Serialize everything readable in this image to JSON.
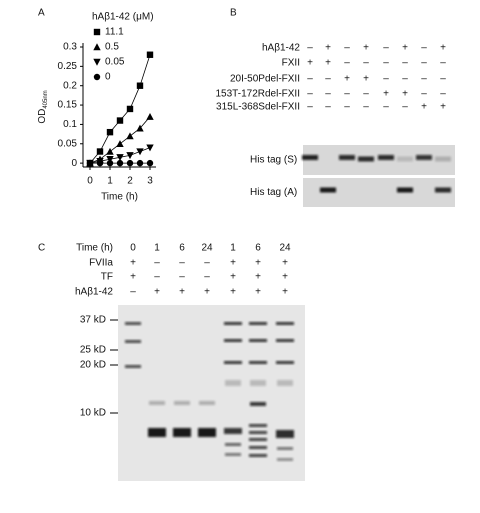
{
  "chart_data": {
    "type": "line",
    "panel_label": "A",
    "legend_title": "hAβ1-42 (μM)",
    "x_label": "Time (h)",
    "y_label": "OD",
    "y_label_sub": "405nm",
    "x": [
      0,
      0.5,
      1,
      1.5,
      2,
      2.5,
      3
    ],
    "series": [
      {
        "name": "11.1",
        "color": "#000000",
        "marker": "square",
        "values": [
          0,
          0.03,
          0.08,
          0.11,
          0.14,
          0.2,
          0.28
        ]
      },
      {
        "name": "0.5",
        "color": "#000000",
        "marker": "triangle",
        "values": [
          0,
          0.01,
          0.03,
          0.05,
          0.07,
          0.09,
          0.12
        ]
      },
      {
        "name": "0.05",
        "color": "#000000",
        "marker": "triangle-down",
        "values": [
          0,
          0.005,
          0.01,
          0.015,
          0.02,
          0.03,
          0.04
        ]
      },
      {
        "name": "0",
        "color": "#000000",
        "marker": "circle",
        "values": [
          0,
          0,
          0,
          0,
          0,
          0,
          0
        ]
      }
    ],
    "xlim": [
      -0.35,
      3.3
    ],
    "xticks": [
      0,
      1,
      2,
      3
    ],
    "ylim": [
      -0.01,
      0.3
    ],
    "yticks": [
      0,
      0.05,
      0.1,
      0.15,
      0.2,
      0.25,
      0.3
    ]
  },
  "panel_b": {
    "label": "B",
    "rows": [
      {
        "label": "hAβ1-42",
        "signs": [
          "–",
          "+",
          "–",
          "+",
          "–",
          "+",
          "–",
          "+"
        ]
      },
      {
        "label": "FXII",
        "signs": [
          "+",
          "+",
          "–",
          "–",
          "–",
          "–",
          "–",
          "–"
        ]
      },
      {
        "label": "20I-50Pdel-FXII",
        "signs": [
          "–",
          "–",
          "+",
          "+",
          "–",
          "–",
          "–",
          "–"
        ]
      },
      {
        "label": "153T-172Rdel-FXII",
        "signs": [
          "–",
          "–",
          "–",
          "–",
          "+",
          "+",
          "–",
          "–"
        ]
      },
      {
        "label": "315L-368Sdel-FXII",
        "signs": [
          "–",
          "–",
          "–",
          "–",
          "–",
          "–",
          "+",
          "+"
        ]
      }
    ],
    "blots": [
      "His tag (S)",
      "His tag (A)"
    ]
  },
  "panel_c": {
    "label": "C",
    "rows": [
      {
        "label": "Time (h)",
        "cells": [
          "0",
          "1",
          "6",
          "24",
          "1",
          "6",
          "24"
        ]
      },
      {
        "label": "FVIIa",
        "cells": [
          "+",
          "–",
          "–",
          "–",
          "+",
          "+",
          "+"
        ]
      },
      {
        "label": "TF",
        "cells": [
          "+",
          "–",
          "–",
          "–",
          "+",
          "+",
          "+"
        ]
      },
      {
        "label": "hAβ1-42",
        "cells": [
          "–",
          "+",
          "+",
          "+",
          "+",
          "+",
          "+"
        ]
      }
    ],
    "markers": [
      "37 kD",
      "25 kD",
      "20 kD",
      "10 kD"
    ]
  }
}
